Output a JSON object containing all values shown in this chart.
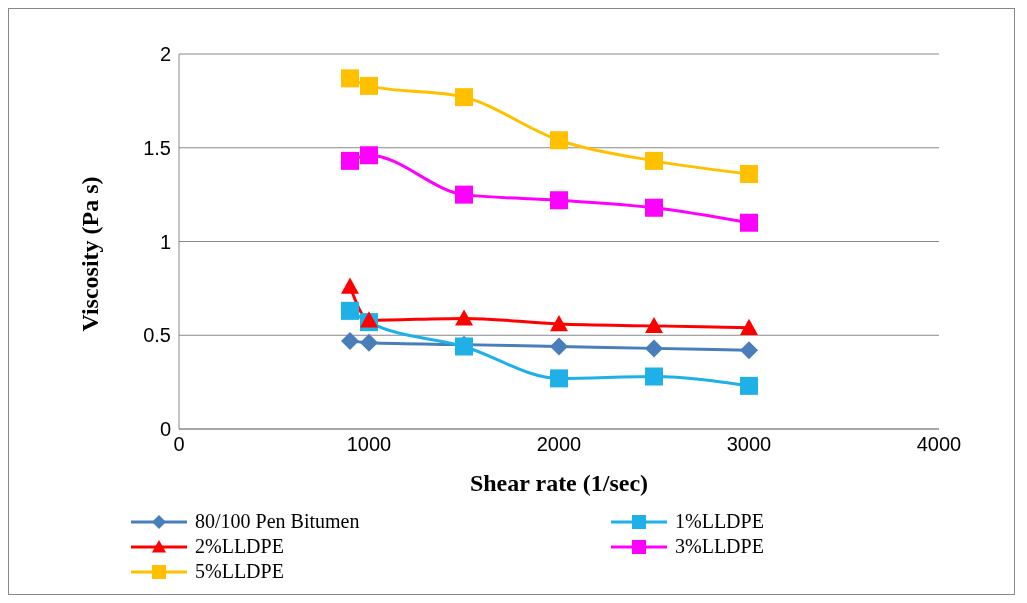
{
  "chart_data": {
    "type": "line",
    "xlabel": "Shear rate (1/sec)",
    "ylabel": "Viscosity (Pa s)",
    "x": [
      900,
      1000,
      1500,
      2000,
      2500,
      3000
    ],
    "xlim": [
      0,
      4000
    ],
    "xticks": [
      0,
      1000,
      2000,
      3000,
      4000
    ],
    "ylim": [
      0,
      2
    ],
    "yticks": [
      0,
      0.5,
      1,
      1.5,
      2
    ],
    "grid": "y",
    "legend": "bottom",
    "series": [
      {
        "name": "80/100 Pen Bitumen",
        "color": "#4a7ebb",
        "marker": "diamond",
        "values": [
          0.47,
          0.46,
          0.45,
          0.44,
          0.43,
          0.42
        ]
      },
      {
        "name": "1%LLDPE",
        "color": "#1fb0e8",
        "marker": "square",
        "values": [
          0.63,
          0.57,
          0.44,
          0.27,
          0.28,
          0.23
        ]
      },
      {
        "name": "2%LLDPE",
        "color": "#ff0000",
        "marker": "triangle",
        "values": [
          0.76,
          0.58,
          0.59,
          0.56,
          0.55,
          0.54
        ]
      },
      {
        "name": "3%LLDPE",
        "color": "#ff00ff",
        "marker": "square",
        "values": [
          1.43,
          1.46,
          1.25,
          1.22,
          1.18,
          1.1
        ]
      },
      {
        "name": "5%LLDPE",
        "color": "#ffc000",
        "marker": "square",
        "values": [
          1.87,
          1.83,
          1.77,
          1.54,
          1.43,
          1.36
        ]
      }
    ]
  }
}
